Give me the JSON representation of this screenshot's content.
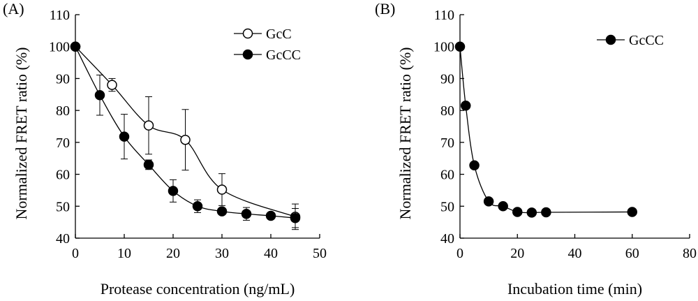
{
  "chart_data": [
    {
      "panel": "(A)",
      "type": "line",
      "xlabel": "Protease concentration (ng/mL)",
      "ylabel": "Normalized FRET ratio (%)",
      "xlim": [
        0,
        50
      ],
      "ylim": [
        40,
        110
      ],
      "xticks": [
        0,
        10,
        20,
        30,
        40,
        50
      ],
      "yticks": [
        40,
        50,
        60,
        70,
        80,
        90,
        100,
        110
      ],
      "grid": false,
      "legend": "top-right",
      "series": [
        {
          "name": "GcC",
          "marker": "open-circle",
          "x": [
            0,
            7.5,
            15,
            22.5,
            30,
            45
          ],
          "y": [
            100,
            88,
            75.3,
            70.8,
            55.2,
            46.7
          ],
          "err": [
            0,
            2,
            9,
            9.5,
            5,
            4
          ]
        },
        {
          "name": "GcCC",
          "marker": "filled-circle",
          "x": [
            0,
            5,
            10,
            15,
            20,
            25,
            30,
            35,
            40,
            45
          ],
          "y": [
            100,
            84.8,
            71.8,
            63,
            54.8,
            50,
            48.4,
            47.6,
            47,
            46.3
          ],
          "err": [
            0,
            6.3,
            7,
            1.5,
            3.5,
            2,
            1,
            2,
            0.5,
            3
          ]
        }
      ]
    },
    {
      "panel": "(B)",
      "type": "line",
      "xlabel": "Incubation time (min)",
      "ylabel": "Normalized FRET ratio (%)",
      "xlim": [
        0,
        80
      ],
      "ylim": [
        40,
        110
      ],
      "xticks": [
        0,
        20,
        40,
        60,
        80
      ],
      "yticks": [
        40,
        50,
        60,
        70,
        80,
        90,
        100,
        110
      ],
      "grid": false,
      "legend": "top-right",
      "series": [
        {
          "name": "GcCC",
          "marker": "filled-circle",
          "x": [
            0,
            2,
            5,
            10,
            15,
            20,
            25,
            30,
            60
          ],
          "y": [
            100,
            81.5,
            62.8,
            51.5,
            50,
            48.2,
            48,
            48.1,
            48.2
          ],
          "err": [
            0,
            0,
            0,
            0,
            0,
            0,
            0,
            0,
            0
          ]
        }
      ]
    }
  ]
}
